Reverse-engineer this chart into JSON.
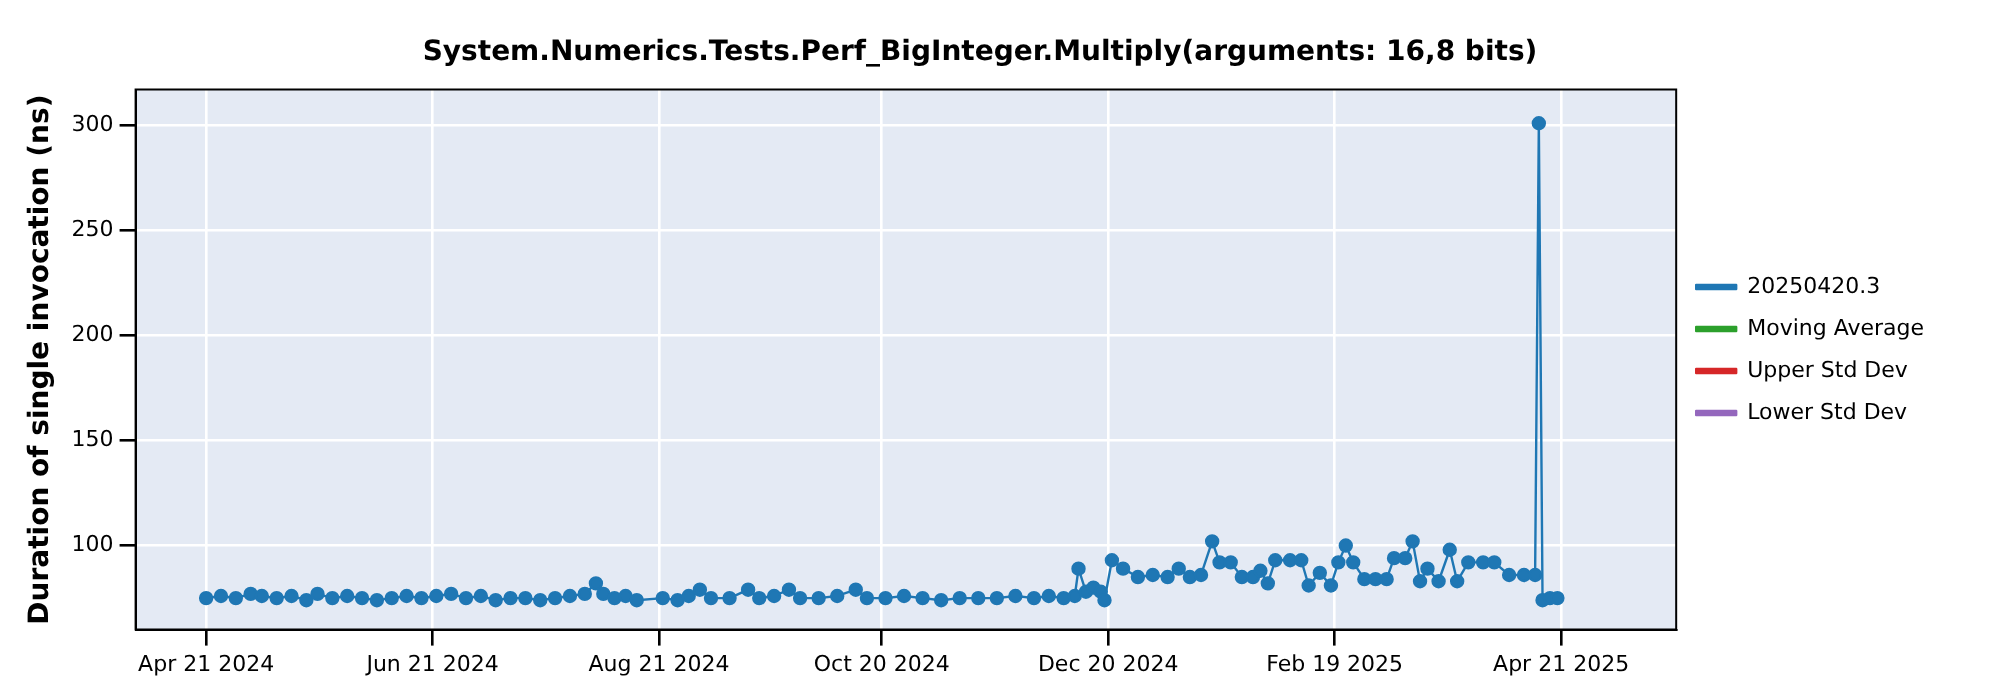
{
  "chart_data": {
    "type": "line",
    "title": "System.Numerics.Tests.Perf_BigInteger.Multiply(arguments: 16,8 bits)",
    "ylabel": "Duration of single invocation (ns)",
    "xlim": [
      "2024-04-02",
      "2025-05-22"
    ],
    "xticks": [
      {
        "value": "2024-04-21",
        "label": "Apr 21 2024"
      },
      {
        "value": "2024-06-21",
        "label": "Jun 21 2024"
      },
      {
        "value": "2024-08-21",
        "label": "Aug 21 2024"
      },
      {
        "value": "2024-10-20",
        "label": "Oct 20 2024"
      },
      {
        "value": "2024-12-20",
        "label": "Dec 20 2024"
      },
      {
        "value": "2025-02-19",
        "label": "Feb 19 2025"
      },
      {
        "value": "2025-04-21",
        "label": "Apr 21 2025"
      }
    ],
    "ylim": [
      60,
      317
    ],
    "yticks": [
      100,
      150,
      200,
      250,
      300
    ],
    "grid": true,
    "legend": "right",
    "marker": "circle",
    "line_style": "solid",
    "series": [
      {
        "name": "20250420.3",
        "color": "#1f77b4",
        "x": [
          "2024-04-21",
          "2024-04-25",
          "2024-04-29",
          "2024-05-03",
          "2024-05-06",
          "2024-05-10",
          "2024-05-14",
          "2024-05-18",
          "2024-05-21",
          "2024-05-25",
          "2024-05-29",
          "2024-06-02",
          "2024-06-06",
          "2024-06-10",
          "2024-06-14",
          "2024-06-18",
          "2024-06-22",
          "2024-06-26",
          "2024-06-30",
          "2024-07-04",
          "2024-07-08",
          "2024-07-12",
          "2024-07-16",
          "2024-07-20",
          "2024-07-24",
          "2024-07-28",
          "2024-08-01",
          "2024-08-04",
          "2024-08-06",
          "2024-08-09",
          "2024-08-12",
          "2024-08-15",
          "2024-08-22",
          "2024-08-26",
          "2024-08-29",
          "2024-09-01",
          "2024-09-04",
          "2024-09-09",
          "2024-09-14",
          "2024-09-17",
          "2024-09-21",
          "2024-09-25",
          "2024-09-28",
          "2024-10-03",
          "2024-10-08",
          "2024-10-13",
          "2024-10-16",
          "2024-10-21",
          "2024-10-26",
          "2024-10-31",
          "2024-11-05",
          "2024-11-10",
          "2024-11-15",
          "2024-11-20",
          "2024-11-25",
          "2024-11-30",
          "2024-12-04",
          "2024-12-08",
          "2024-12-11",
          "2024-12-12",
          "2024-12-14",
          "2024-12-16",
          "2024-12-18",
          "2024-12-19",
          "2024-12-21",
          "2024-12-24",
          "2024-12-28",
          "2025-01-01",
          "2025-01-05",
          "2025-01-08",
          "2025-01-11",
          "2025-01-14",
          "2025-01-17",
          "2025-01-19",
          "2025-01-22",
          "2025-01-25",
          "2025-01-28",
          "2025-01-30",
          "2025-02-01",
          "2025-02-03",
          "2025-02-07",
          "2025-02-10",
          "2025-02-12",
          "2025-02-15",
          "2025-02-18",
          "2025-02-20",
          "2025-02-22",
          "2025-02-24",
          "2025-02-27",
          "2025-03-02",
          "2025-03-05",
          "2025-03-07",
          "2025-03-10",
          "2025-03-12",
          "2025-03-14",
          "2025-03-16",
          "2025-03-19",
          "2025-03-22",
          "2025-03-24",
          "2025-03-27",
          "2025-03-31",
          "2025-04-03",
          "2025-04-07",
          "2025-04-11",
          "2025-04-14",
          "2025-04-15",
          "2025-04-16",
          "2025-04-18",
          "2025-04-20"
        ],
        "values": [
          75,
          76,
          75,
          77,
          76,
          75,
          76,
          74,
          77,
          75,
          76,
          75,
          74,
          75,
          76,
          75,
          76,
          77,
          75,
          76,
          74,
          75,
          75,
          74,
          75,
          76,
          77,
          82,
          77,
          75,
          76,
          74,
          75,
          74,
          76,
          79,
          75,
          75,
          79,
          75,
          76,
          79,
          75,
          75,
          76,
          79,
          75,
          75,
          76,
          75,
          74,
          75,
          75,
          75,
          76,
          75,
          76,
          75,
          76,
          89,
          78,
          80,
          78,
          74,
          93,
          89,
          85,
          86,
          85,
          89,
          85,
          86,
          102,
          92,
          92,
          85,
          85,
          88,
          82,
          93,
          93,
          93,
          81,
          87,
          81,
          92,
          100,
          92,
          84,
          84,
          84,
          94,
          94,
          102,
          83,
          89,
          83,
          98,
          83,
          92,
          92,
          92,
          86,
          86,
          86,
          301,
          74,
          75,
          75
        ]
      },
      {
        "name": "Moving Average",
        "color": "#2ca02c"
      },
      {
        "name": "Upper Std Dev",
        "color": "#d62728"
      },
      {
        "name": "Lower Std Dev",
        "color": "#9467bd"
      }
    ]
  }
}
